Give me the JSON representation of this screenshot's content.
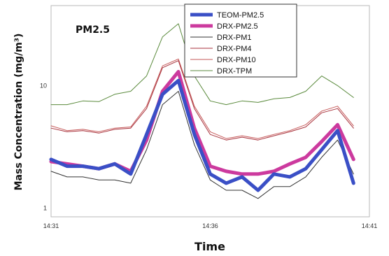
{
  "chart_data": {
    "type": "line",
    "title": "",
    "annotation": "PM2.5",
    "xlabel": "Time",
    "ylabel": "Mass Concentration (mg/m³)",
    "x_ticks": [
      "14:31",
      "14:36",
      "14:41"
    ],
    "x_range_minutes": [
      0,
      10
    ],
    "y_scale": "log",
    "ylim": [
      0.85,
      45
    ],
    "y_ticks": [
      1,
      10
    ],
    "y_tick_labels": [
      "1",
      "10"
    ],
    "legend_position": "top-right",
    "x_minutes": [
      0,
      0.5,
      1,
      1.5,
      2,
      2.5,
      3,
      3.5,
      4,
      4.5,
      5,
      5.5,
      6,
      6.5,
      7,
      7.5,
      8,
      8.5,
      9,
      9.5
    ],
    "series": [
      {
        "name": "TEOM-PM2.5",
        "color": "#3a4fc6",
        "width": 5,
        "values": [
          2.5,
          2.2,
          2.2,
          2.1,
          2.3,
          1.9,
          4.0,
          8.5,
          11.0,
          4.0,
          1.9,
          1.6,
          1.8,
          1.4,
          1.9,
          1.8,
          2.1,
          3.0,
          4.3,
          1.6
        ]
      },
      {
        "name": "DRX-PM2.5",
        "color": "#cc3a9e",
        "width": 5,
        "values": [
          2.4,
          2.3,
          2.2,
          2.1,
          2.3,
          2.0,
          3.6,
          9.0,
          13.0,
          4.5,
          2.2,
          2.0,
          1.9,
          1.9,
          2.0,
          2.3,
          2.6,
          3.5,
          4.8,
          2.5
        ]
      },
      {
        "name": "DRX-PM1",
        "color": "#333333",
        "width": 1,
        "values": [
          2.0,
          1.8,
          1.8,
          1.7,
          1.7,
          1.6,
          3.0,
          7.0,
          9.0,
          3.3,
          1.7,
          1.4,
          1.4,
          1.2,
          1.5,
          1.5,
          1.8,
          2.6,
          3.6,
          1.9
        ]
      },
      {
        "name": "DRX-PM4",
        "color": "#a8323c",
        "width": 1,
        "values": [
          4.5,
          4.2,
          4.3,
          4.1,
          4.4,
          4.5,
          6.5,
          14.0,
          16.0,
          6.5,
          4.0,
          3.6,
          3.8,
          3.6,
          3.9,
          4.2,
          4.6,
          6.0,
          6.5,
          4.5
        ]
      },
      {
        "name": "DRX-PM10",
        "color": "#c65a5a",
        "width": 1,
        "values": [
          4.7,
          4.3,
          4.4,
          4.2,
          4.5,
          4.6,
          6.8,
          14.5,
          16.5,
          6.8,
          4.2,
          3.7,
          3.9,
          3.7,
          4.0,
          4.3,
          4.8,
          6.2,
          6.8,
          4.7
        ]
      },
      {
        "name": "DRX-TPM",
        "color": "#5a8a3c",
        "width": 1,
        "values": [
          7.0,
          7.0,
          7.5,
          7.4,
          8.5,
          9.0,
          12.0,
          25.0,
          32.0,
          12.0,
          7.5,
          7.0,
          7.5,
          7.3,
          7.8,
          8.0,
          9.0,
          12.0,
          10.0,
          8.0
        ]
      }
    ]
  }
}
